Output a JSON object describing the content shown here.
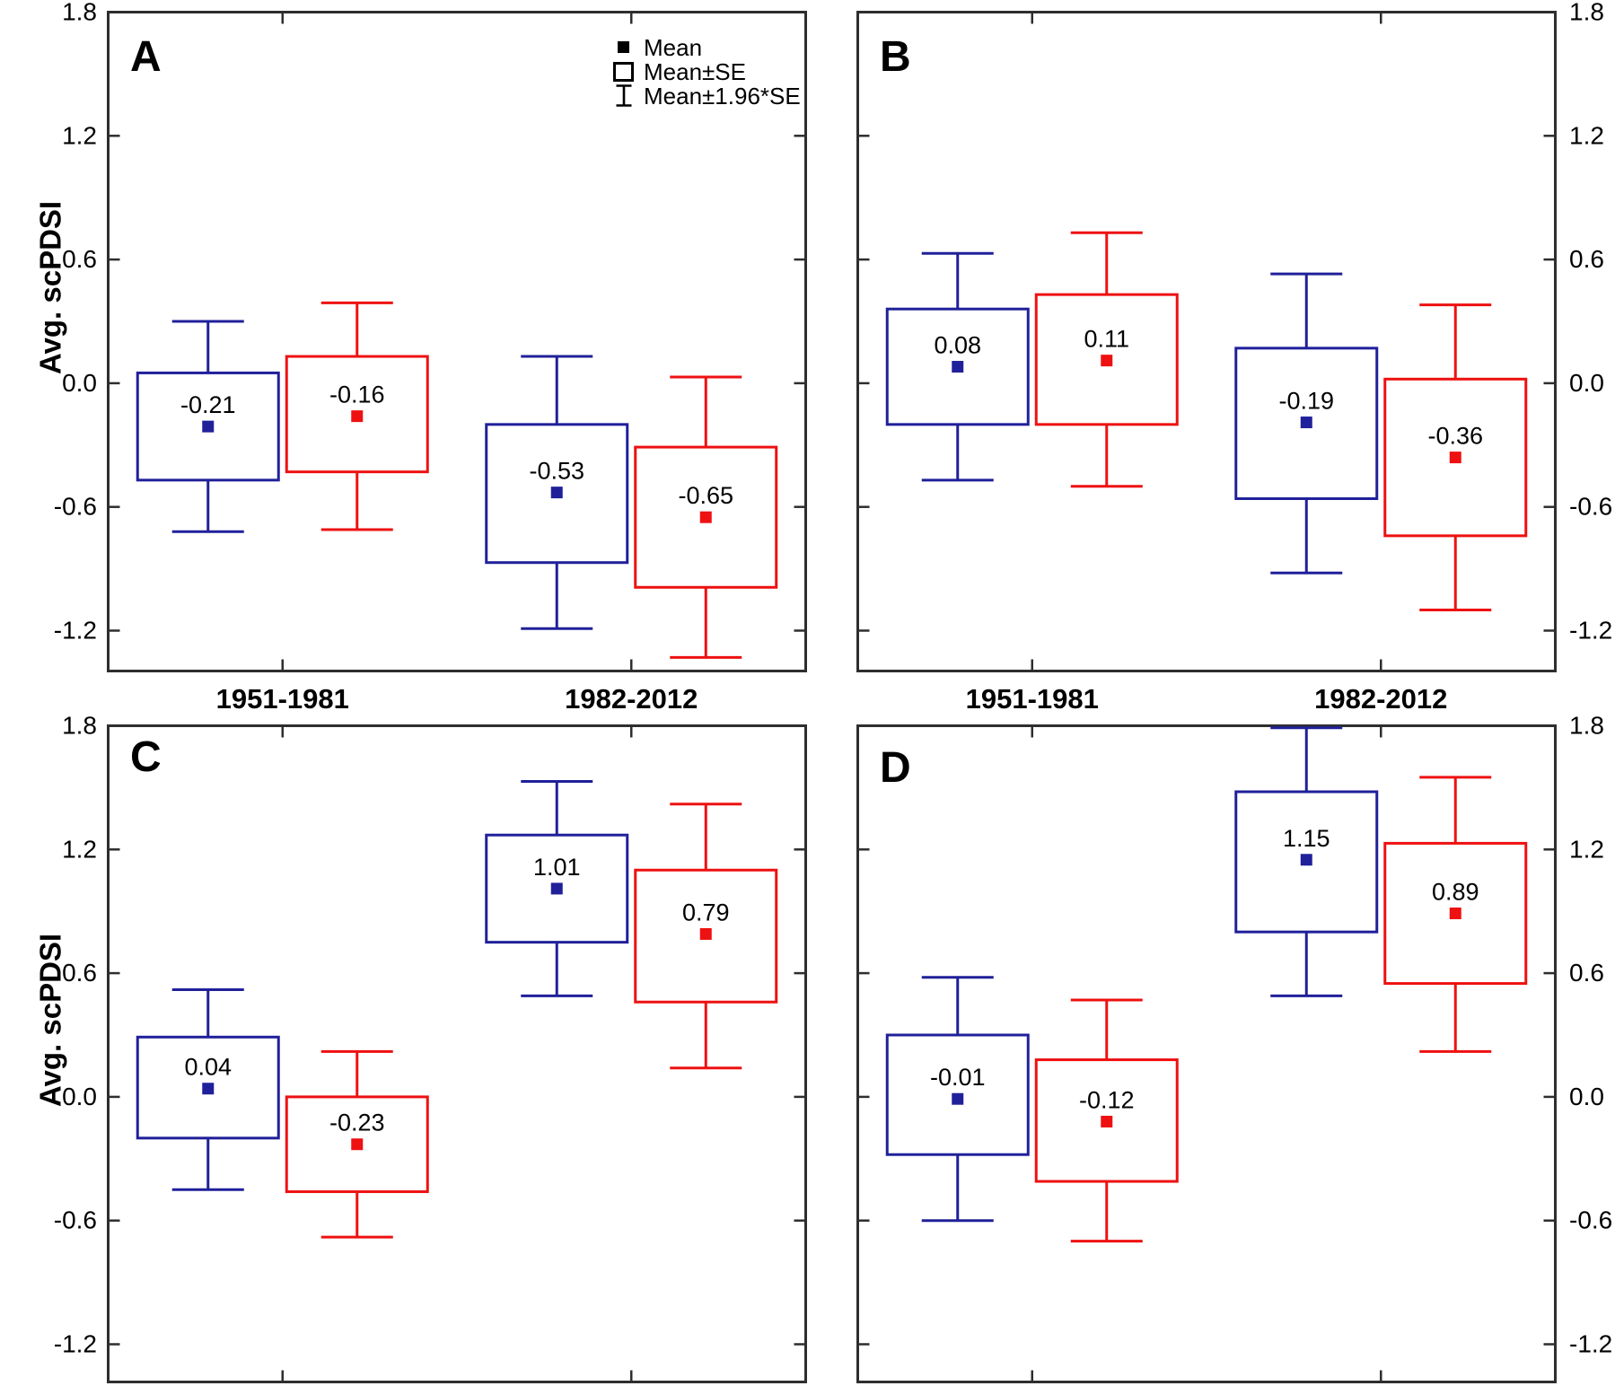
{
  "chart_data": {
    "type": "box",
    "title": "",
    "ylabel": "Avg. scPDSI",
    "categories": [
      "1951-1981",
      "1982-2012"
    ],
    "y_tick_labels": [
      "1.8",
      "1.2",
      "0.6",
      "0.0",
      "-0.6",
      "-1.2"
    ],
    "y_tick_values": [
      1.8,
      1.2,
      0.6,
      0.0,
      -0.6,
      -1.2
    ],
    "ylim": [
      -1.39,
      1.8
    ],
    "grid": false,
    "legend_position": "top-center-of-panel-A",
    "legend": [
      {
        "icon": "mean-square-icon",
        "label": "Mean"
      },
      {
        "icon": "mean-se-box-icon",
        "label": "Mean±SE"
      },
      {
        "icon": "error-bar-icon",
        "label": "Mean±1.96*SE"
      }
    ],
    "series": [
      {
        "name": "series-blue",
        "color": "#20209a"
      },
      {
        "name": "series-red",
        "color": "#ee1111"
      }
    ],
    "colors": {
      "axis": "#2e2e2e",
      "text": "#000000",
      "background": "#ffffff"
    },
    "panels": [
      {
        "label": "A",
        "row": 0,
        "col": 0,
        "yaxis_labels": "left",
        "boxes": [
          {
            "series": 0,
            "cat": 0,
            "mean": -0.21,
            "mean_label": "-0.21",
            "se": [
              0.05,
              -0.47
            ],
            "ci": [
              0.3,
              -0.72
            ]
          },
          {
            "series": 1,
            "cat": 0,
            "mean": -0.16,
            "mean_label": "-0.16",
            "se": [
              0.13,
              -0.43
            ],
            "ci": [
              0.39,
              -0.71
            ]
          },
          {
            "series": 0,
            "cat": 1,
            "mean": -0.53,
            "mean_label": "-0.53",
            "se": [
              -0.2,
              -0.87
            ],
            "ci": [
              0.13,
              -1.19
            ]
          },
          {
            "series": 1,
            "cat": 1,
            "mean": -0.65,
            "mean_label": "-0.65",
            "se": [
              -0.31,
              -0.99
            ],
            "ci": [
              0.03,
              -1.33
            ]
          }
        ]
      },
      {
        "label": "B",
        "row": 0,
        "col": 1,
        "yaxis_labels": "right",
        "boxes": [
          {
            "series": 0,
            "cat": 0,
            "mean": 0.08,
            "mean_label": "0.08",
            "se": [
              0.36,
              -0.2
            ],
            "ci": [
              0.63,
              -0.47
            ]
          },
          {
            "series": 1,
            "cat": 0,
            "mean": 0.11,
            "mean_label": "0.11",
            "se": [
              0.43,
              -0.2
            ],
            "ci": [
              0.73,
              -0.5
            ]
          },
          {
            "series": 0,
            "cat": 1,
            "mean": -0.19,
            "mean_label": "-0.19",
            "se": [
              0.17,
              -0.56
            ],
            "ci": [
              0.53,
              -0.92
            ]
          },
          {
            "series": 1,
            "cat": 1,
            "mean": -0.36,
            "mean_label": "-0.36",
            "se": [
              0.02,
              -0.74
            ],
            "ci": [
              0.38,
              -1.1
            ]
          }
        ]
      },
      {
        "label": "C",
        "row": 1,
        "col": 0,
        "yaxis_labels": "left",
        "boxes": [
          {
            "series": 0,
            "cat": 0,
            "mean": 0.04,
            "mean_label": "0.04",
            "se": [
              0.29,
              -0.2
            ],
            "ci": [
              0.52,
              -0.45
            ]
          },
          {
            "series": 1,
            "cat": 0,
            "mean": -0.23,
            "mean_label": "-0.23",
            "se": [
              0.0,
              -0.46
            ],
            "ci": [
              0.22,
              -0.68
            ]
          },
          {
            "series": 0,
            "cat": 1,
            "mean": 1.01,
            "mean_label": "1.01",
            "se": [
              1.27,
              0.75
            ],
            "ci": [
              1.53,
              0.49
            ]
          },
          {
            "series": 1,
            "cat": 1,
            "mean": 0.79,
            "mean_label": "0.79",
            "se": [
              1.1,
              0.46
            ],
            "ci": [
              1.42,
              0.14
            ]
          }
        ]
      },
      {
        "label": "D",
        "row": 1,
        "col": 1,
        "yaxis_labels": "right",
        "boxes": [
          {
            "series": 0,
            "cat": 0,
            "mean": -0.01,
            "mean_label": "-0.01",
            "se": [
              0.3,
              -0.28
            ],
            "ci": [
              0.58,
              -0.6
            ]
          },
          {
            "series": 1,
            "cat": 0,
            "mean": -0.12,
            "mean_label": "-0.12",
            "se": [
              0.18,
              -0.41
            ],
            "ci": [
              0.47,
              -0.7
            ]
          },
          {
            "series": 0,
            "cat": 1,
            "mean": 1.15,
            "mean_label": "1.15",
            "se": [
              1.48,
              0.8
            ],
            "ci": [
              1.79,
              0.49
            ]
          },
          {
            "series": 1,
            "cat": 1,
            "mean": 0.89,
            "mean_label": "0.89",
            "se": [
              1.23,
              0.55
            ],
            "ci": [
              1.55,
              0.22
            ]
          }
        ]
      }
    ]
  }
}
